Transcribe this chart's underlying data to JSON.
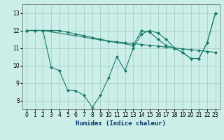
{
  "xlabel": "Humidex (Indice chaleur)",
  "bg_color": "#cceee8",
  "grid_color": "#aad4cc",
  "line_color": "#1a7a6a",
  "xlim": [
    -0.5,
    23.5
  ],
  "ylim": [
    7.5,
    13.5
  ],
  "xticks": [
    0,
    1,
    2,
    3,
    4,
    5,
    6,
    7,
    8,
    9,
    10,
    11,
    12,
    13,
    14,
    15,
    16,
    17,
    18,
    19,
    20,
    21,
    22,
    23
  ],
  "yticks": [
    8,
    9,
    10,
    11,
    12,
    13
  ],
  "series1_x": [
    0,
    1,
    2,
    3,
    4,
    5,
    6,
    7,
    8,
    9,
    10,
    11,
    12,
    13,
    14,
    15,
    16,
    17,
    18,
    19,
    20,
    21,
    22,
    23
  ],
  "series1_y": [
    12.0,
    12.0,
    12.0,
    9.9,
    9.7,
    8.6,
    8.55,
    8.3,
    7.6,
    8.3,
    9.3,
    10.5,
    9.7,
    11.0,
    11.8,
    12.0,
    11.85,
    11.5,
    11.0,
    10.75,
    10.4,
    10.4,
    11.3,
    13.0
  ],
  "series2_x": [
    0,
    1,
    2,
    3,
    4,
    5,
    6,
    7,
    8,
    9,
    10,
    11,
    12,
    13,
    14,
    15,
    16,
    17,
    18,
    19,
    20,
    21,
    22,
    23
  ],
  "series2_y": [
    12.0,
    12.0,
    12.0,
    12.0,
    12.0,
    11.9,
    11.8,
    11.7,
    11.6,
    11.5,
    11.4,
    11.35,
    11.3,
    11.25,
    11.2,
    11.15,
    11.1,
    11.05,
    11.0,
    10.95,
    10.9,
    10.85,
    10.8,
    10.75
  ],
  "series3_x": [
    0,
    2,
    13,
    14,
    15,
    16,
    17,
    18,
    19,
    20,
    21,
    22,
    23
  ],
  "series3_y": [
    12.0,
    12.0,
    11.15,
    12.0,
    11.9,
    11.5,
    11.15,
    11.0,
    10.75,
    10.4,
    10.4,
    11.3,
    13.0
  ]
}
